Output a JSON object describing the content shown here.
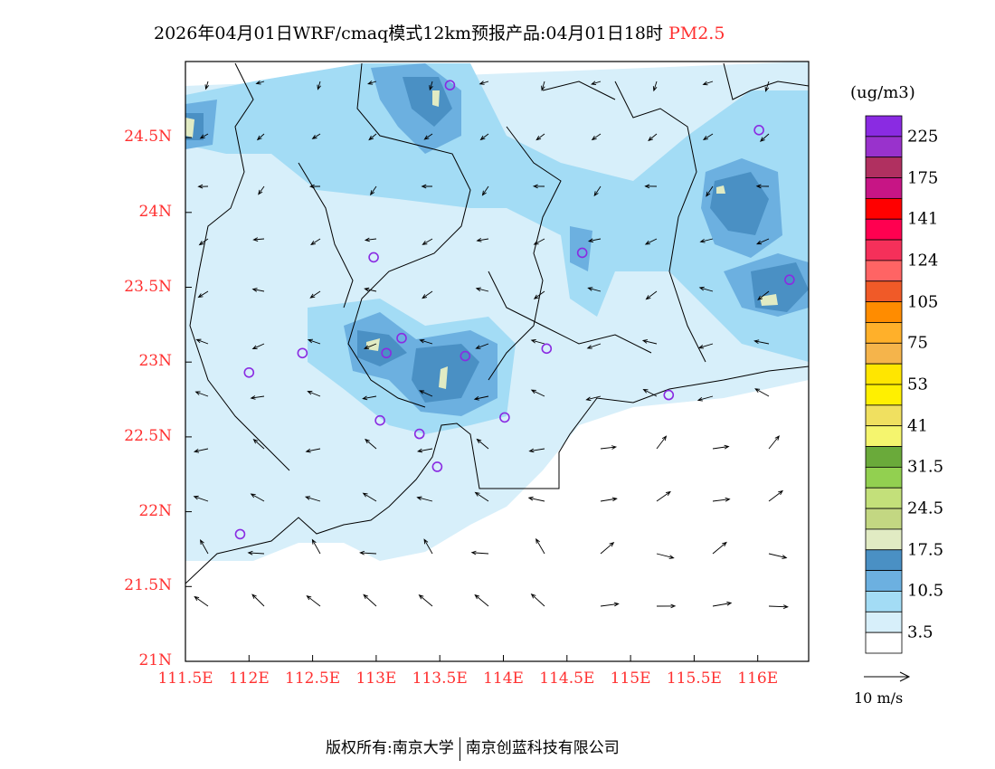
{
  "title": {
    "text": "2026年04月01日WRF/cmaq模式12km预报产品:04月01日18时",
    "variable": "PM2.5"
  },
  "map": {
    "lon_range": [
      111.5,
      116.5
    ],
    "lat_range": [
      21,
      25
    ],
    "lat_labels": [
      "24.5N",
      "24N",
      "23.5N",
      "23N",
      "22.5N",
      "22N",
      "21.5N",
      "21N"
    ],
    "lon_labels": [
      "111.5E",
      "112E",
      "112.5E",
      "113E",
      "113.5E",
      "114E",
      "114.5E",
      "115E",
      "115.5E",
      "116E"
    ],
    "stations": [
      [
        113.58,
        24.85
      ],
      [
        112.98,
        23.7
      ],
      [
        114.62,
        23.73
      ],
      [
        116.01,
        24.55
      ],
      [
        116.25,
        23.55
      ],
      [
        112.42,
        23.06
      ],
      [
        112.0,
        22.93
      ],
      [
        113.08,
        23.06
      ],
      [
        113.2,
        23.16
      ],
      [
        113.7,
        23.04
      ],
      [
        114.34,
        23.09
      ],
      [
        115.3,
        22.78
      ],
      [
        113.03,
        22.61
      ],
      [
        113.34,
        22.52
      ],
      [
        114.01,
        22.63
      ],
      [
        113.48,
        22.3
      ],
      [
        111.93,
        21.85
      ]
    ]
  },
  "colorbar": {
    "unit": "(ug/m3)",
    "colors": [
      "#8a2be2",
      "#9932cc",
      "#b03060",
      "#c71585",
      "#ff0000",
      "#ff0050",
      "#f5305a",
      "#ff6464",
      "#f05a28",
      "#ff8c00",
      "#ffb02a",
      "#f5b44b",
      "#ffe600",
      "#fff000",
      "#f0e060",
      "#f5f56e",
      "#6aaa3a",
      "#92d050",
      "#c3e07a",
      "#c3d782",
      "#e1ebc3",
      "#4a90c4",
      "#6cb0e0",
      "#a3dcf5",
      "#d7effa",
      "#ffffff"
    ],
    "labels": [
      "225",
      "175",
      "141",
      "124",
      "105",
      "75",
      "53",
      "41",
      "31.5",
      "24.5",
      "17.5",
      "10.5",
      "3.5"
    ]
  },
  "wind_ref": {
    "label": "10 m/s"
  },
  "footer": {
    "left": "版权所有:南京大学",
    "right": "南京创蓝科技有限公司"
  }
}
